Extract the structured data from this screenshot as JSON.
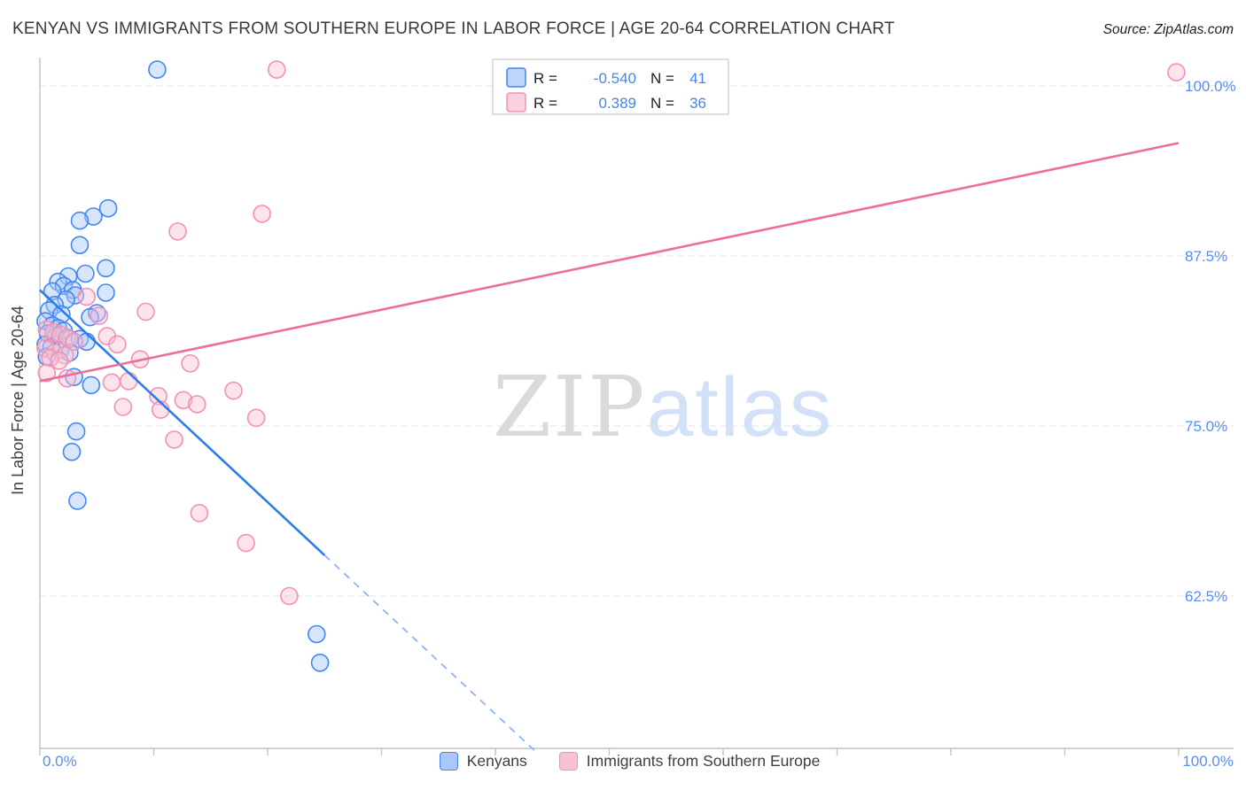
{
  "page": {
    "title": "KENYAN VS IMMIGRANTS FROM SOUTHERN EUROPE IN LABOR FORCE | AGE 20-64 CORRELATION CHART",
    "source": "Source: ZipAtlas.com"
  },
  "chart_data": {
    "type": "scatter",
    "title": "KENYAN VS IMMIGRANTS FROM SOUTHERN EUROPE IN LABOR FORCE | AGE 20-64 CORRELATION CHART",
    "source": "Source: ZipAtlas.com",
    "ylabel": "In Labor Force | Age 20-64",
    "xlim": [
      0,
      100
    ],
    "ylim_percent": [
      51,
      102
    ],
    "grid": "horizontal-dashed",
    "legend_position": "top-center",
    "watermark": {
      "zip": "ZIP",
      "atlas": "atlas"
    },
    "x_axis_labels": {
      "left": "0.0%",
      "right": "100.0%"
    },
    "y_ticks": [
      {
        "value": 100.0,
        "label": "100.0%"
      },
      {
        "value": 87.5,
        "label": "87.5%"
      },
      {
        "value": 75.0,
        "label": "75.0%"
      },
      {
        "value": 62.5,
        "label": "62.5%"
      }
    ],
    "legend_labels": {
      "r_label": "R =",
      "n_label": "N ="
    },
    "legend_stats": [
      {
        "series": "Kenyans",
        "R": "-0.540",
        "N": "41"
      },
      {
        "series": "Immigrants from Southern Europe",
        "R": "0.389",
        "N": "36"
      }
    ],
    "series": [
      {
        "name": "Kenyans",
        "color_fill": "#a9c7f7",
        "color_stroke": "#4285f4",
        "line_color": "#2b7de9",
        "dash_color": "#8ab4f8",
        "points": [
          [
            10.3,
            101.2
          ],
          [
            6.0,
            91.0
          ],
          [
            4.7,
            90.4
          ],
          [
            3.5,
            90.1
          ],
          [
            3.5,
            88.3
          ],
          [
            5.8,
            86.6
          ],
          [
            4.0,
            86.2
          ],
          [
            2.5,
            86.0
          ],
          [
            1.6,
            85.6
          ],
          [
            2.1,
            85.3
          ],
          [
            2.9,
            85.0
          ],
          [
            1.1,
            84.9
          ],
          [
            5.8,
            84.8
          ],
          [
            3.1,
            84.6
          ],
          [
            2.3,
            84.3
          ],
          [
            1.3,
            83.9
          ],
          [
            0.8,
            83.5
          ],
          [
            1.9,
            83.2
          ],
          [
            5.0,
            83.3
          ],
          [
            4.4,
            83.0
          ],
          [
            0.5,
            82.7
          ],
          [
            1.1,
            82.4
          ],
          [
            1.6,
            82.2
          ],
          [
            2.1,
            82.0
          ],
          [
            0.7,
            81.8
          ],
          [
            1.4,
            81.6
          ],
          [
            2.6,
            81.4
          ],
          [
            3.5,
            81.4
          ],
          [
            4.1,
            81.2
          ],
          [
            0.5,
            81.0
          ],
          [
            1.0,
            80.8
          ],
          [
            1.8,
            80.6
          ],
          [
            2.6,
            80.4
          ],
          [
            0.6,
            80.1
          ],
          [
            3.0,
            78.6
          ],
          [
            4.5,
            78.0
          ],
          [
            3.2,
            74.6
          ],
          [
            2.8,
            73.1
          ],
          [
            3.3,
            69.5
          ],
          [
            24.3,
            59.7
          ],
          [
            24.6,
            57.6
          ]
        ],
        "trend_solid": [
          [
            0,
            85.0
          ],
          [
            25,
            65.5
          ]
        ],
        "trend_dashed": [
          [
            25,
            65.5
          ],
          [
            43.5,
            51.1
          ]
        ]
      },
      {
        "name": "Immigrants from Southern Europe",
        "color_fill": "#f9c2d4",
        "color_stroke": "#f291b2",
        "line_color": "#ee6d9c",
        "points": [
          [
            20.8,
            101.2
          ],
          [
            99.8,
            101.0
          ],
          [
            19.5,
            90.6
          ],
          [
            12.1,
            89.3
          ],
          [
            9.3,
            83.4
          ],
          [
            4.1,
            84.5
          ],
          [
            5.2,
            83.1
          ],
          [
            0.6,
            82.1
          ],
          [
            1.2,
            81.9
          ],
          [
            1.8,
            81.7
          ],
          [
            2.4,
            81.5
          ],
          [
            3.0,
            81.2
          ],
          [
            5.9,
            81.6
          ],
          [
            6.8,
            81.0
          ],
          [
            0.5,
            80.7
          ],
          [
            1.3,
            80.4
          ],
          [
            2.2,
            80.2
          ],
          [
            0.9,
            80.0
          ],
          [
            1.7,
            79.8
          ],
          [
            8.8,
            79.9
          ],
          [
            13.2,
            79.6
          ],
          [
            0.6,
            78.9
          ],
          [
            2.4,
            78.5
          ],
          [
            6.3,
            78.2
          ],
          [
            7.8,
            78.3
          ],
          [
            17.0,
            77.6
          ],
          [
            10.4,
            77.2
          ],
          [
            12.6,
            76.9
          ],
          [
            13.8,
            76.6
          ],
          [
            7.3,
            76.4
          ],
          [
            10.6,
            76.2
          ],
          [
            19.0,
            75.6
          ],
          [
            11.8,
            74.0
          ],
          [
            14.0,
            68.6
          ],
          [
            18.1,
            66.4
          ],
          [
            21.9,
            62.5
          ]
        ],
        "trend_solid": [
          [
            0,
            78.3
          ],
          [
            100,
            95.8
          ]
        ]
      }
    ]
  }
}
